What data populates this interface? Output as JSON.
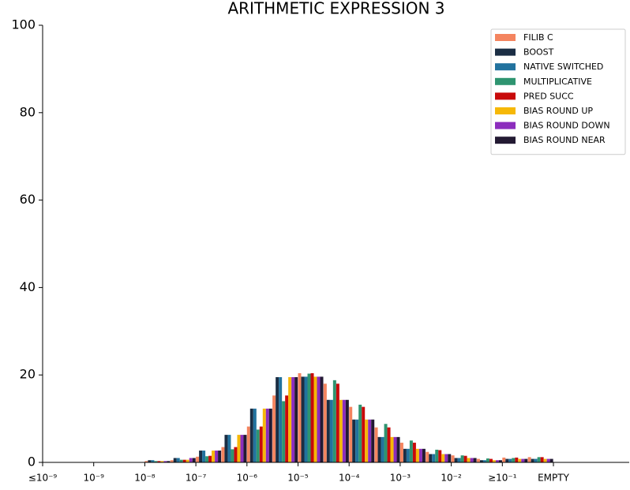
{
  "chart_data": {
    "type": "bar",
    "title": "ARITHMETIC EXPRESSION 3",
    "categories": [
      "≤10⁻⁹",
      null,
      "10⁻⁹",
      null,
      "10⁻⁸",
      null,
      "10⁻⁷",
      null,
      "10⁻⁶",
      null,
      "10⁻⁵",
      null,
      "10⁻⁴",
      null,
      "10⁻³",
      null,
      "10⁻²",
      null,
      "≥10⁻¹",
      null,
      "EMPTY"
    ],
    "series": [
      {
        "name": "FILIB C",
        "color": "#f4845f",
        "values": [
          0,
          0,
          0,
          0,
          0.3,
          0.5,
          1.3,
          3.5,
          8.2,
          15.3,
          20.4,
          18.0,
          12.7,
          8.0,
          4.5,
          2.4,
          1.6,
          0.8,
          1.1,
          1.2,
          0
        ]
      },
      {
        "name": "BOOST",
        "color": "#1b2e44",
        "values": [
          0,
          0,
          0,
          0,
          0.5,
          1.0,
          2.7,
          6.3,
          12.3,
          19.5,
          19.6,
          14.3,
          9.8,
          5.8,
          3.1,
          1.9,
          1.0,
          0.5,
          0.8,
          0.8,
          0
        ]
      },
      {
        "name": "NATIVE SWITCHED",
        "color": "#22729e",
        "values": [
          0,
          0,
          0,
          0,
          0.5,
          1.0,
          2.7,
          6.3,
          12.3,
          19.5,
          19.6,
          14.3,
          9.8,
          5.8,
          3.1,
          1.9,
          1.0,
          0.5,
          0.8,
          0.8,
          0
        ]
      },
      {
        "name": "MULTIPLICATIVE",
        "color": "#2e9470",
        "values": [
          0,
          0,
          0,
          0,
          0.3,
          0.6,
          1.4,
          3.0,
          7.5,
          14.0,
          20.3,
          18.8,
          13.2,
          8.8,
          5.0,
          2.9,
          1.6,
          0.9,
          1.0,
          1.2,
          0
        ]
      },
      {
        "name": "PRED SUCC",
        "color": "#c80a0a",
        "values": [
          0,
          0,
          0,
          0,
          0.3,
          0.6,
          1.5,
          3.5,
          8.2,
          15.3,
          20.4,
          18.0,
          12.7,
          8.0,
          4.5,
          2.8,
          1.5,
          0.8,
          1.1,
          1.2,
          0
        ]
      },
      {
        "name": "BIAS ROUND UP",
        "color": "#f6b807",
        "values": [
          0,
          0,
          0,
          0,
          0.3,
          0.6,
          2.7,
          6.3,
          12.3,
          19.5,
          19.6,
          14.3,
          9.8,
          5.8,
          3.1,
          1.9,
          1.0,
          0.5,
          0.8,
          0.8,
          0
        ]
      },
      {
        "name": "BIAS ROUND DOWN",
        "color": "#8c2dbd",
        "values": [
          0,
          0,
          0,
          0,
          0.3,
          1.0,
          2.7,
          6.3,
          12.3,
          19.5,
          19.6,
          14.3,
          9.8,
          5.8,
          3.1,
          1.9,
          1.0,
          0.5,
          0.8,
          0.8,
          0
        ]
      },
      {
        "name": "BIAS ROUND NEAR",
        "color": "#231a33",
        "values": [
          0,
          0,
          0,
          0,
          0.3,
          1.0,
          2.7,
          6.3,
          12.3,
          19.5,
          19.6,
          14.3,
          9.8,
          5.8,
          3.1,
          1.9,
          1.0,
          0.5,
          0.8,
          0.8,
          0
        ]
      }
    ],
    "ylim": [
      0,
      100
    ],
    "yticks": [
      0,
      20,
      40,
      60,
      80,
      100
    ],
    "legend": "upper right"
  }
}
